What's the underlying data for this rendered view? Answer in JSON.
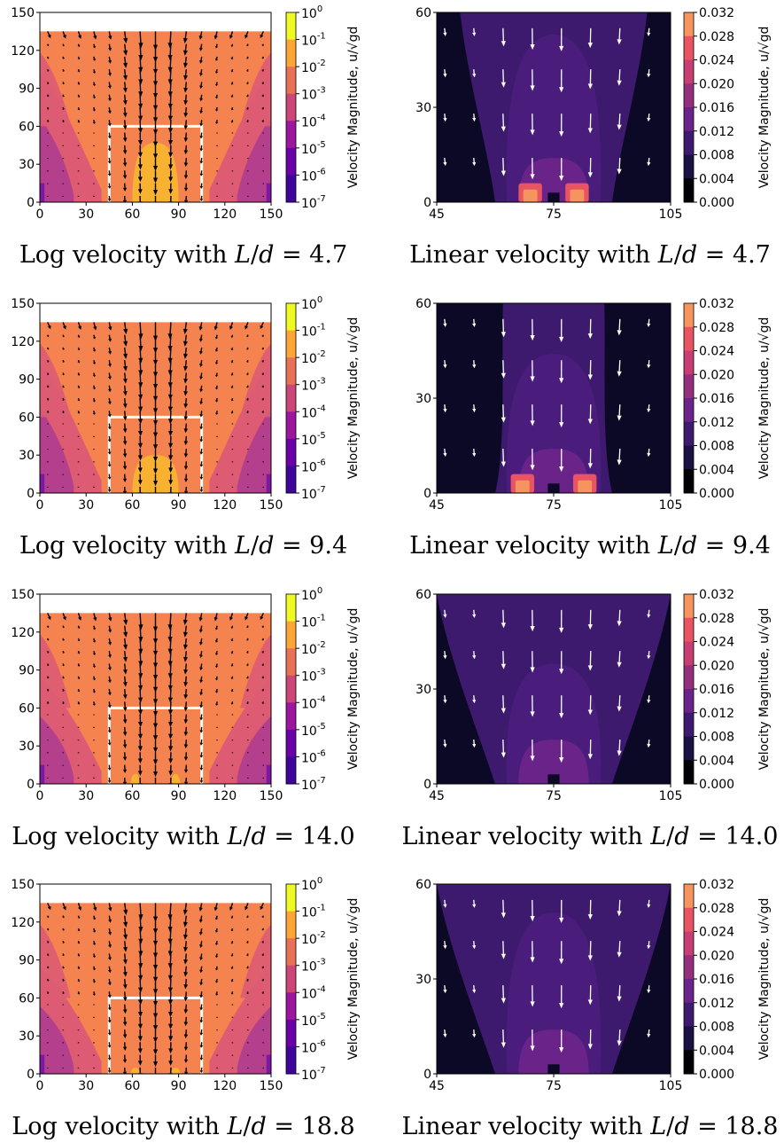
{
  "colorbar_label": "Velocity Magnitude, u/√gd",
  "chart_data": [
    {
      "type": "heatmap",
      "scale": "log",
      "caption": "Log velocity with L/d = 4.7",
      "ld": "4.7",
      "xlim": [
        0,
        150
      ],
      "ylim": [
        0,
        150
      ],
      "xticks": [
        0,
        30,
        60,
        90,
        120,
        150
      ],
      "yticks": [
        0,
        30,
        60,
        90,
        120,
        150
      ],
      "colorbar_ticks": [
        "10^0",
        "10^-1",
        "10^-2",
        "10^-3",
        "10^-4",
        "10^-5",
        "10^-6",
        "10^-7"
      ],
      "orifice_box": {
        "x": [
          45,
          105
        ],
        "y": [
          0,
          60
        ]
      },
      "fill_height": 135,
      "jet_top": 47
    },
    {
      "type": "heatmap",
      "scale": "linear",
      "caption": "Linear velocity with L/d = 4.7",
      "ld": "4.7",
      "xlim": [
        45,
        105
      ],
      "ylim": [
        0,
        60
      ],
      "xticks": [
        45,
        75,
        105
      ],
      "yticks": [
        0,
        30,
        60
      ],
      "colorbar_ticks": [
        "0.032",
        "0.028",
        "0.024",
        "0.020",
        "0.016",
        "0.012",
        "0.008",
        "0.004",
        "0.000"
      ],
      "plume_top": 53
    },
    {
      "type": "heatmap",
      "scale": "log",
      "caption": "Log velocity with L/d = 9.4",
      "ld": "9.4",
      "xlim": [
        0,
        150
      ],
      "ylim": [
        0,
        150
      ],
      "xticks": [
        0,
        30,
        60,
        90,
        120,
        150
      ],
      "yticks": [
        0,
        30,
        60,
        90,
        120,
        150
      ],
      "colorbar_ticks": [
        "10^0",
        "10^-1",
        "10^-2",
        "10^-3",
        "10^-4",
        "10^-5",
        "10^-6",
        "10^-7"
      ],
      "orifice_box": {
        "x": [
          45,
          105
        ],
        "y": [
          0,
          60
        ]
      },
      "fill_height": 135,
      "jet_top": 30
    },
    {
      "type": "heatmap",
      "scale": "linear",
      "caption": "Linear velocity with L/d = 9.4",
      "ld": "9.4",
      "xlim": [
        45,
        105
      ],
      "ylim": [
        0,
        60
      ],
      "xticks": [
        45,
        75,
        105
      ],
      "yticks": [
        0,
        30,
        60
      ],
      "colorbar_ticks": [
        "0.032",
        "0.028",
        "0.024",
        "0.020",
        "0.016",
        "0.012",
        "0.008",
        "0.004",
        "0.000"
      ],
      "plume_top": 44
    },
    {
      "type": "heatmap",
      "scale": "log",
      "caption": "Log velocity with L/d = 14.0",
      "ld": "14.0",
      "xlim": [
        0,
        150
      ],
      "ylim": [
        0,
        150
      ],
      "xticks": [
        0,
        30,
        60,
        90,
        120,
        150
      ],
      "yticks": [
        0,
        30,
        60,
        90,
        120,
        150
      ],
      "colorbar_ticks": [
        "10^0",
        "10^-1",
        "10^-2",
        "10^-3",
        "10^-4",
        "10^-5",
        "10^-6",
        "10^-7"
      ],
      "orifice_box": {
        "x": [
          45,
          105
        ],
        "y": [
          0,
          60
        ]
      },
      "fill_height": 135,
      "jet_top": 8
    },
    {
      "type": "heatmap",
      "scale": "linear",
      "caption": "Linear velocity with L/d = 14.0",
      "ld": "14.0",
      "xlim": [
        45,
        105
      ],
      "ylim": [
        0,
        60
      ],
      "xticks": [
        45,
        75,
        105
      ],
      "yticks": [
        0,
        30,
        60
      ],
      "colorbar_ticks": [
        "0.032",
        "0.028",
        "0.024",
        "0.020",
        "0.016",
        "0.012",
        "0.008",
        "0.004",
        "0.000"
      ],
      "plume_top": 38
    },
    {
      "type": "heatmap",
      "scale": "log",
      "caption": "Log velocity with L/d = 18.8",
      "ld": "18.8",
      "xlim": [
        0,
        150
      ],
      "ylim": [
        0,
        150
      ],
      "xticks": [
        0,
        30,
        60,
        90,
        120,
        150
      ],
      "yticks": [
        0,
        30,
        60,
        90,
        120,
        150
      ],
      "colorbar_ticks": [
        "10^0",
        "10^-1",
        "10^-2",
        "10^-3",
        "10^-4",
        "10^-5",
        "10^-6",
        "10^-7"
      ],
      "orifice_box": {
        "x": [
          45,
          105
        ],
        "y": [
          0,
          60
        ]
      },
      "fill_height": 135,
      "jet_top": 5
    },
    {
      "type": "heatmap",
      "scale": "linear",
      "caption": "Linear velocity with L/d = 18.8",
      "ld": "18.8",
      "xlim": [
        45,
        105
      ],
      "ylim": [
        0,
        60
      ],
      "xticks": [
        45,
        75,
        105
      ],
      "yticks": [
        0,
        30,
        60
      ],
      "colorbar_ticks": [
        "0.032",
        "0.028",
        "0.024",
        "0.020",
        "0.016",
        "0.012",
        "0.008",
        "0.004",
        "0.000"
      ],
      "plume_top": 51
    }
  ]
}
